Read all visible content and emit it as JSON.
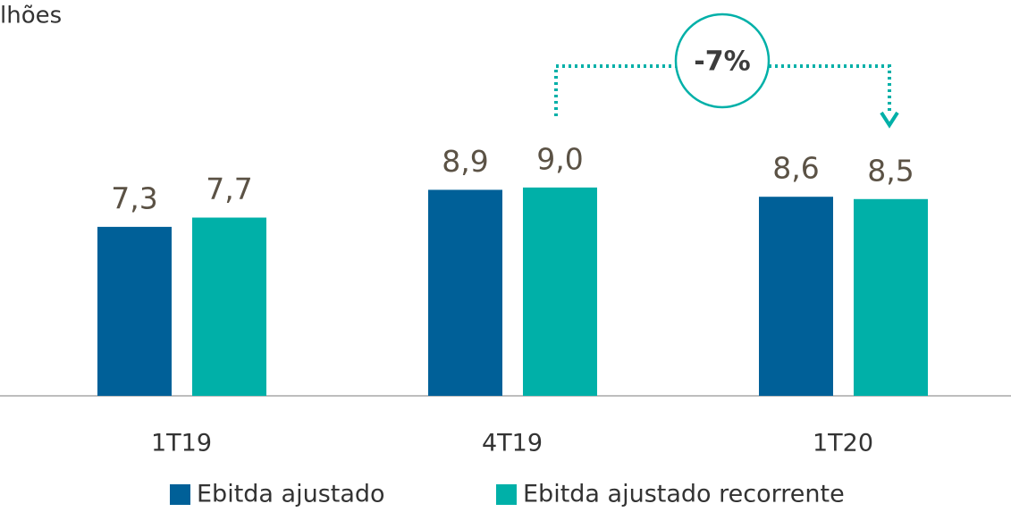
{
  "chart_data": {
    "type": "bar",
    "title": "lhões",
    "annotation": "-7%",
    "categories": [
      "1T19",
      "4T19",
      "1T20"
    ],
    "series": [
      {
        "name": "Ebitda ajustado",
        "color": "#006098",
        "values": [
          7.3,
          8.9,
          8.6
        ],
        "value_labels": [
          "7,3",
          "8,9",
          "8,6"
        ]
      },
      {
        "name": "Ebitda ajustado recorrente",
        "color": "#00b0a8",
        "values": [
          7.7,
          9.0,
          8.5
        ],
        "value_labels": [
          "7,7",
          "9,0",
          "8,5"
        ]
      }
    ],
    "ylim": [
      0,
      17.1
    ]
  }
}
